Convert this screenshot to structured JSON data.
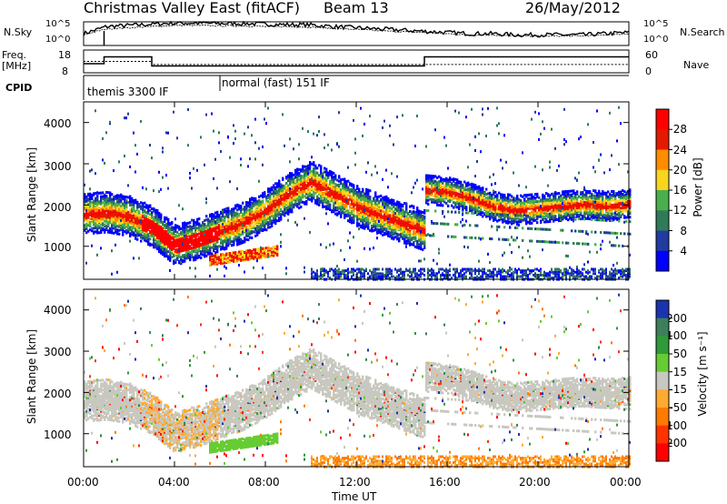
{
  "header": {
    "title": "Christmas Valley East (fitACF)",
    "beam": "Beam 13",
    "date": "26/May/2012"
  },
  "cpid": {
    "label": "CPID",
    "modes": [
      "themis 3300 IF",
      "normal (fast) 151 IF"
    ]
  },
  "chart_data": [
    {
      "type": "line",
      "panel": "noise",
      "ylabel_left": "N.Sky",
      "ylabel_right": "N.Search",
      "left_ticks": [
        "10^5",
        "10^0"
      ],
      "right_ticks": [
        "10^5",
        "10^0"
      ],
      "series": [
        {
          "name": "N.Sky",
          "x": [
            0,
            1,
            2,
            3,
            4,
            5,
            6,
            7,
            8,
            9,
            10,
            11,
            12,
            13,
            14,
            15,
            16,
            17,
            18,
            19,
            20,
            21,
            22,
            23,
            24
          ],
          "y": [
            0.5,
            0.8,
            0.85,
            0.9,
            0.95,
            0.95,
            0.93,
            0.93,
            0.9,
            0.88,
            0.87,
            0.8,
            0.75,
            0.7,
            0.65,
            0.6,
            0.55,
            0.5,
            0.5,
            0.45,
            0.45,
            0.45,
            0.45,
            0.5,
            0.55
          ]
        },
        {
          "name": "N.Search",
          "x": [
            0,
            1,
            2,
            3,
            4,
            5,
            6,
            7,
            8,
            9,
            10,
            11,
            12,
            13,
            14,
            15,
            16,
            17,
            18,
            19,
            20,
            21,
            22,
            23,
            24
          ],
          "y": [
            0.45,
            0.7,
            0.75,
            0.8,
            0.85,
            0.85,
            0.83,
            0.83,
            0.8,
            0.8,
            0.78,
            0.72,
            0.68,
            0.62,
            0.58,
            0.55,
            0.5,
            0.45,
            0.45,
            0.4,
            0.4,
            0.4,
            0.4,
            0.45,
            0.5
          ]
        }
      ]
    },
    {
      "type": "line",
      "panel": "frequency",
      "ylabel_left": "Freq. [MHz]",
      "ylabel_right": "Nave",
      "left_ticks": [
        18,
        8
      ],
      "right_ticks": [
        60,
        0
      ],
      "series": [
        {
          "name": "Freq.",
          "x": [
            0,
            0.9,
            0.9,
            3.0,
            3.0,
            15.0,
            15.0,
            24
          ],
          "y": [
            12,
            12,
            15,
            15,
            11,
            11,
            15,
            15
          ]
        },
        {
          "name": "Nave",
          "x": [
            0,
            3.0,
            3.0,
            24
          ],
          "y": [
            30,
            30,
            22,
            22
          ]
        }
      ]
    },
    {
      "type": "heatmap",
      "panel": "power",
      "ylabel": "Slant Range [km]",
      "ylim": [
        200,
        4500
      ],
      "yticks": [
        1000,
        2000,
        3000,
        4000
      ],
      "colorbar_label": "Power [dB]",
      "colorbar_ticks": [
        4,
        8,
        12,
        16,
        20,
        24,
        28
      ],
      "colors": [
        "#0000ff",
        "#203ca0",
        "#2f7b57",
        "#49b04b",
        "#f9d51f",
        "#ff8c00",
        "#e41a00",
        "#ff0000"
      ]
    },
    {
      "type": "heatmap",
      "panel": "velocity",
      "ylabel": "Slant Range [km]",
      "ylim": [
        200,
        4500
      ],
      "yticks": [
        1000,
        2000,
        3000,
        4000
      ],
      "xticks": [
        "00:00",
        "04:00",
        "08:00",
        "12:00",
        "16:00",
        "20:00",
        "00:00"
      ],
      "xlabel": "Time UT",
      "colorbar_label": "Velocity [m s⁻¹]",
      "colorbar_ticks": [
        200,
        100,
        50,
        15,
        -15,
        -50,
        -100,
        -200
      ],
      "colors": [
        "#1a34b0",
        "#3c7f5a",
        "#2f9a3a",
        "#66cc33",
        "#c8c8c0",
        "#ffaa30",
        "#ff7a00",
        "#ff3300",
        "#ff0000"
      ]
    }
  ],
  "bands_power": [
    {
      "x": [
        0,
        1,
        2,
        3,
        4,
        5,
        6,
        7,
        8,
        9,
        10,
        11,
        12,
        13,
        14,
        15
      ],
      "y": [
        1800,
        1850,
        1750,
        1500,
        1050,
        1200,
        1400,
        1600,
        1900,
        2300,
        2600,
        2300,
        2000,
        1800,
        1600,
        1400
      ],
      "w": 350
    },
    {
      "x": [
        15,
        16,
        17,
        18,
        19,
        20,
        21,
        22,
        23,
        24
      ],
      "y": [
        2400,
        2350,
        2200,
        2000,
        1900,
        1950,
        2000,
        2050,
        2000,
        2050
      ],
      "w": 250
    }
  ]
}
